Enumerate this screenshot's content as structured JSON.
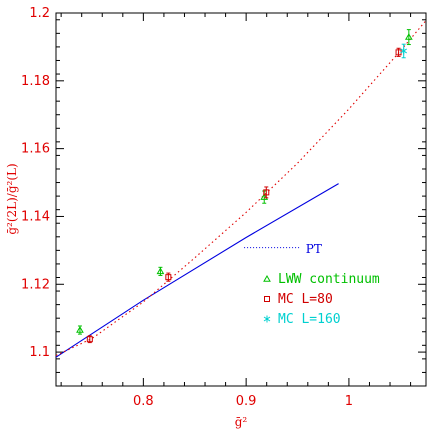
{
  "colors": {
    "axis": "#000000",
    "tick_labels": "#e00000",
    "lww": "#00c000",
    "mc80": "#d00000",
    "mc160": "#00d0d0",
    "pt": "#0000e0",
    "fit": "#e00000"
  },
  "chart_data": {
    "type": "scatter",
    "xlabel": "ḡ²",
    "ylabel": "ḡ²(2L)/ḡ²(L)",
    "xlim": [
      0.715,
      1.075
    ],
    "ylim": [
      1.09,
      1.2
    ],
    "x_ticks": [
      0.8,
      0.9,
      1.0
    ],
    "x_tick_labels": [
      "0.8",
      "0.9",
      "1"
    ],
    "y_ticks": [
      1.1,
      1.12,
      1.14,
      1.16,
      1.18,
      1.2
    ],
    "y_tick_labels": [
      "1.1",
      "1.12",
      "1.14",
      "1.16",
      "1.18",
      "1.2"
    ],
    "grid": false,
    "legend_position": "lower-right",
    "series": [
      {
        "name": "LWW continuum",
        "marker": "triangle",
        "color_key": "lww",
        "points": [
          {
            "x": 0.7383,
            "y": 1.1065,
            "err": 0.0012
          },
          {
            "x": 0.8166,
            "y": 1.1238,
            "err": 0.0012
          },
          {
            "x": 0.9176,
            "y": 1.1457,
            "err": 0.0018
          },
          {
            "x": 1.0583,
            "y": 1.1929,
            "err": 0.0022
          }
        ]
      },
      {
        "name": "MC L=80",
        "marker": "square",
        "color_key": "mc80",
        "points": [
          {
            "x": 0.7479,
            "y": 1.1038,
            "err": 0.001
          },
          {
            "x": 0.8243,
            "y": 1.1221,
            "err": 0.0012
          },
          {
            "x": 0.9196,
            "y": 1.1471,
            "err": 0.0016
          },
          {
            "x": 1.0483,
            "y": 1.1884,
            "err": 0.0012
          }
        ]
      },
      {
        "name": "MC L=160",
        "marker": "star",
        "color_key": "mc160",
        "points": [
          {
            "x": 1.0533,
            "y": 1.1888,
            "err": 0.002
          }
        ]
      }
    ],
    "curves": [
      {
        "id": "pt",
        "style": "solid",
        "color_key": "pt",
        "points": [
          [
            0.715,
            1.0985
          ],
          [
            0.8,
            1.1153
          ],
          [
            0.9,
            1.1338
          ],
          [
            0.99,
            1.1497
          ]
        ]
      },
      {
        "id": "fit",
        "style": "dotted",
        "color_key": "fit",
        "points": [
          [
            0.715,
            1.099
          ],
          [
            0.75,
            1.104
          ],
          [
            0.8,
            1.1148
          ],
          [
            0.85,
            1.1278
          ],
          [
            0.9,
            1.1412
          ],
          [
            0.95,
            1.1557
          ],
          [
            1.0,
            1.1717
          ],
          [
            1.05,
            1.1888
          ],
          [
            1.075,
            1.1978
          ]
        ]
      }
    ],
    "annotations": [
      {
        "text": "PT",
        "x": 0.958,
        "y": 1.1304,
        "leader_from_x": 0.898,
        "leader_to_x": 0.952,
        "leader_y": 1.1308
      }
    ]
  }
}
